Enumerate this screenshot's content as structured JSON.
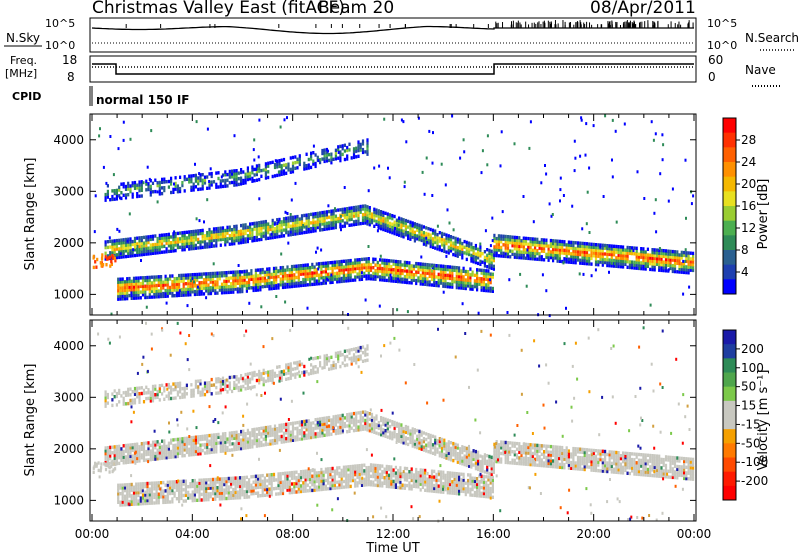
{
  "header": {
    "station": "Christmas Valley East (fitACF)",
    "beam": "Beam 20",
    "date": "08/Apr/2011"
  },
  "noise_panel": {
    "left_label": "N.Sky",
    "right_label": "N.Search",
    "left_ticks": [
      "10^5",
      "10^0"
    ],
    "right_ticks": [
      "10^5",
      "10^0"
    ]
  },
  "freq_panel": {
    "left_label_1": "Freq.",
    "left_label_2": "[MHz]",
    "left_ticks": [
      "18",
      "8"
    ],
    "right_label": "Nave",
    "right_ticks": [
      "60",
      "0"
    ]
  },
  "cpid_panel": {
    "label": "CPID",
    "mode": "normal 150 IF"
  },
  "chart_data": [
    {
      "type": "heatmap",
      "title": "",
      "ylabel": "Slant Range [km]",
      "xlabel": "",
      "ylim": [
        600,
        4500
      ],
      "xlim": [
        "00:00",
        "00:00"
      ],
      "y_ticks": [
        "1000",
        "2000",
        "3000",
        "4000"
      ],
      "colorbar_label": "Power [dB]",
      "colorbar_ticks": [
        "4",
        "8",
        "12",
        "16",
        "20",
        "24",
        "28"
      ],
      "colors": [
        "#0000ff",
        "#2a4aa8",
        "#2e8b57",
        "#7cc94a",
        "#e8d820",
        "#f5a000",
        "#ff4000",
        "#ff0000"
      ],
      "echo_bands": [
        {
          "name": "lower",
          "start_hour": 1.0,
          "end_hour": 16.0,
          "center_km": [
            1150,
            1300,
            1550,
            1300
          ],
          "intensity": "high"
        },
        {
          "name": "middle",
          "start_hour": 0.5,
          "end_hour": 16.0,
          "center_km": [
            1900,
            2200,
            2600,
            1700
          ],
          "intensity": "medium"
        },
        {
          "name": "upper",
          "start_hour": 0.5,
          "end_hour": 11.0,
          "center_km": [
            3000,
            3300,
            3900
          ],
          "intensity": "low"
        },
        {
          "name": "evening",
          "start_hour": 16.0,
          "end_hour": 24.0,
          "center_km": [
            2000,
            1650
          ],
          "intensity": "high"
        }
      ]
    },
    {
      "type": "heatmap",
      "title": "",
      "ylabel": "Slant Range [km]",
      "xlabel": "Time UT",
      "ylim": [
        600,
        4500
      ],
      "x_ticks": [
        "00:00",
        "04:00",
        "08:00",
        "12:00",
        "16:00",
        "20:00",
        "00:00"
      ],
      "y_ticks": [
        "1000",
        "2000",
        "3000",
        "4000"
      ],
      "colorbar_label": "Velocity [m s⁻¹]",
      "colorbar_ticks": [
        "200",
        "100",
        "50",
        "15",
        "-15",
        "-50",
        "-100",
        "-200"
      ],
      "colors": [
        "#1a1aa8",
        "#2e8b57",
        "#7cc94a",
        "#c8c8c0",
        "#f5a000",
        "#ff6000",
        "#ff0000"
      ]
    }
  ]
}
